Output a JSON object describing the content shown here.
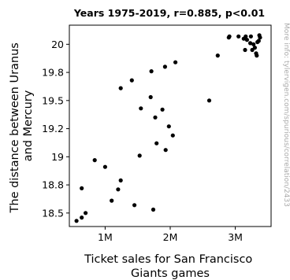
{
  "chart_data": {
    "type": "scatter",
    "title": "Years 1975-2019, r=0.885, p<0.01",
    "xlabel": [
      "Ticket sales for San Francisco",
      "Giants games"
    ],
    "ylabel": [
      "The distance between Uranus",
      "and Mercury"
    ],
    "side_note": "More info: tylervigen.com/spurious/correlation/2433",
    "xlim": [
      450000,
      3550000
    ],
    "ylim": [
      18.38,
      20.17
    ],
    "x_ticks": [
      {
        "value": 1000000,
        "label": "1M"
      },
      {
        "value": 2000000,
        "label": "2M"
      },
      {
        "value": 3000000,
        "label": "3M"
      }
    ],
    "y_ticks": [
      {
        "value": 18.5,
        "label": "18.5"
      },
      {
        "value": 18.75,
        "label": "18.8"
      },
      {
        "value": 19,
        "label": "19"
      },
      {
        "value": 19.25,
        "label": "19.2"
      },
      {
        "value": 19.5,
        "label": "19.5"
      },
      {
        "value": 19.75,
        "label": "19.8"
      },
      {
        "value": 20,
        "label": "20"
      }
    ],
    "grid": false,
    "marker_color": "#000000",
    "points": [
      [
        560000,
        18.43
      ],
      [
        640000,
        18.46
      ],
      [
        700000,
        18.5
      ],
      [
        640000,
        18.72
      ],
      [
        840000,
        18.97
      ],
      [
        1000000,
        18.91
      ],
      [
        1100000,
        18.61
      ],
      [
        1200000,
        18.71
      ],
      [
        1240000,
        18.79
      ],
      [
        1240000,
        19.61
      ],
      [
        1410000,
        19.68
      ],
      [
        1450000,
        18.57
      ],
      [
        1530000,
        19.01
      ],
      [
        1550000,
        19.43
      ],
      [
        1710000,
        19.76
      ],
      [
        1700000,
        19.53
      ],
      [
        1740000,
        18.53
      ],
      [
        1770000,
        19.35
      ],
      [
        1790000,
        19.12
      ],
      [
        1880000,
        19.42
      ],
      [
        1930000,
        19.06
      ],
      [
        1920000,
        19.8
      ],
      [
        1980000,
        19.27
      ],
      [
        2040000,
        19.19
      ],
      [
        2080000,
        19.84
      ],
      [
        2600000,
        19.5
      ],
      [
        2730000,
        19.9
      ],
      [
        2900000,
        20.06
      ],
      [
        2910000,
        20.07
      ],
      [
        3050000,
        20.07
      ],
      [
        3130000,
        20.05
      ],
      [
        3160000,
        20.07
      ],
      [
        3180000,
        20.04
      ],
      [
        3150000,
        19.95
      ],
      [
        3230000,
        20.01
      ],
      [
        3240000,
        20.07
      ],
      [
        3260000,
        19.95
      ],
      [
        3280000,
        20.0
      ],
      [
        3300000,
        19.97
      ],
      [
        3320000,
        19.92
      ],
      [
        3330000,
        19.9
      ],
      [
        3340000,
        20.02
      ],
      [
        3360000,
        20.03
      ],
      [
        3370000,
        20.08
      ],
      [
        3380000,
        20.06
      ]
    ]
  }
}
